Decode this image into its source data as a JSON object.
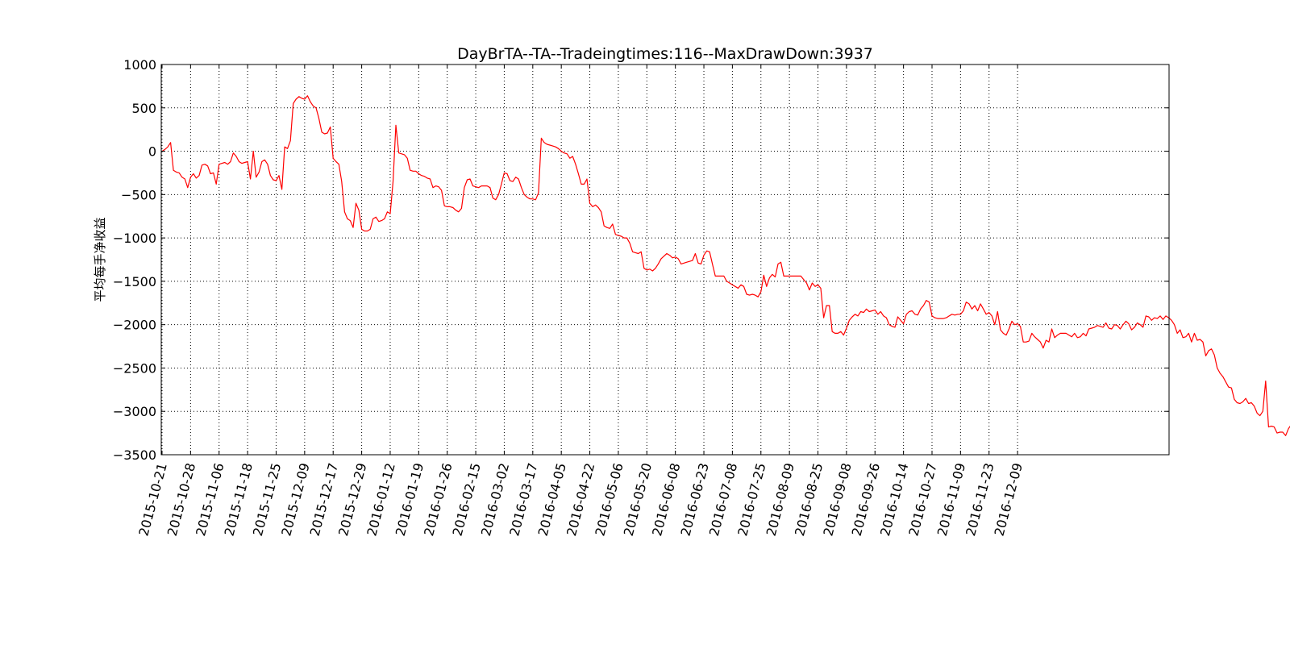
{
  "chart_data": {
    "type": "line",
    "title": "DayBrTA--TA--Tradeingtimes:116--MaxDrawDown:3937",
    "xlabel": "",
    "ylabel": "平均每手净收益",
    "ylim": [
      -3500,
      1000
    ],
    "yticks": [
      1000,
      500,
      0,
      -500,
      -1000,
      -1500,
      -2000,
      -2500,
      -3000,
      -3500
    ],
    "ytick_labels": [
      "1000",
      "500",
      "0",
      "−500",
      "−1000",
      "−1500",
      "−2000",
      "−2500",
      "−3000",
      "−3500"
    ],
    "x_tick_labels": [
      "2015-10-21",
      "2015-10-28",
      "2015-11-06",
      "2015-11-18",
      "2015-11-25",
      "2015-12-09",
      "2015-12-17",
      "2015-12-29",
      "2016-01-12",
      "2016-01-19",
      "2016-01-26",
      "2016-02-15",
      "2016-03-02",
      "2016-03-17",
      "2016-04-05",
      "2016-04-22",
      "2016-05-06",
      "2016-05-20",
      "2016-06-08",
      "2016-06-23",
      "2016-07-08",
      "2016-07-25",
      "2016-08-09",
      "2016-08-25",
      "2016-09-08",
      "2016-09-26",
      "2016-10-14",
      "2016-10-27",
      "2016-11-09",
      "2016-11-23",
      "2016-12-09"
    ],
    "x_tick_every": 10,
    "x_slots": 400,
    "grid": true,
    "grid_style": "dotted",
    "line_color": "#ff0000",
    "series": [
      {
        "values": [
          0,
          20,
          50,
          100,
          -220,
          -240,
          -250,
          -300,
          -320,
          -420,
          -300,
          -260,
          -310,
          -280,
          -160,
          -150,
          -170,
          -260,
          -250,
          -380,
          -150,
          -140,
          -130,
          -150,
          -120,
          -20,
          -60,
          -120,
          -140,
          -130,
          -120,
          -320,
          0,
          -300,
          -240,
          -120,
          -100,
          -150,
          -280,
          -330,
          -340,
          -280,
          -440,
          50,
          30,
          120,
          550,
          600,
          630,
          610,
          600,
          640,
          570,
          520,
          500,
          380,
          220,
          200,
          210,
          280,
          -80,
          -120,
          -150,
          -350,
          -700,
          -780,
          -800,
          -880,
          -600,
          -680,
          -900,
          -920,
          -920,
          -900,
          -780,
          -760,
          -810,
          -800,
          -780,
          -700,
          -720,
          -350,
          300,
          -20,
          -30,
          -40,
          -80,
          -220,
          -230,
          -230,
          -260,
          -280,
          -290,
          -310,
          -320,
          -420,
          -400,
          -410,
          -450,
          -630,
          -640,
          -640,
          -650,
          -680,
          -700,
          -660,
          -420,
          -330,
          -320,
          -400,
          -410,
          -420,
          -400,
          -400,
          -400,
          -420,
          -540,
          -560,
          -500,
          -380,
          -250,
          -260,
          -340,
          -350,
          -300,
          -320,
          -420,
          -500,
          -530,
          -550,
          -550,
          -560,
          -480,
          150,
          100,
          80,
          70,
          60,
          50,
          30,
          0,
          -20,
          -30,
          -80,
          -60,
          -150,
          -260,
          -380,
          -380,
          -320,
          -600,
          -640,
          -620,
          -650,
          -700,
          -860,
          -880,
          -890,
          -840,
          -960,
          -970,
          -980,
          -1000,
          -1000,
          -1060,
          -1160,
          -1170,
          -1180,
          -1160,
          -1350,
          -1370,
          -1360,
          -1380,
          -1350,
          -1300,
          -1240,
          -1210,
          -1180,
          -1200,
          -1230,
          -1220,
          -1240,
          -1300,
          -1290,
          -1280,
          -1270,
          -1260,
          -1180,
          -1290,
          -1300,
          -1200,
          -1150,
          -1160,
          -1300,
          -1440,
          -1440,
          -1440,
          -1440,
          -1500,
          -1520,
          -1540,
          -1560,
          -1580,
          -1540,
          -1560,
          -1650,
          -1660,
          -1650,
          -1660,
          -1680,
          -1620,
          -1430,
          -1560,
          -1460,
          -1420,
          -1450,
          -1300,
          -1280,
          -1440,
          -1440,
          -1440,
          -1440,
          -1440,
          -1440,
          -1440,
          -1480,
          -1520,
          -1600,
          -1520,
          -1560,
          -1540,
          -1580,
          -1920,
          -1780,
          -1780,
          -2080,
          -2100,
          -2100,
          -2080,
          -2120,
          -2040,
          -1950,
          -1910,
          -1880,
          -1900,
          -1850,
          -1860,
          -1820,
          -1850,
          -1840,
          -1830,
          -1880,
          -1850,
          -1900,
          -1920,
          -2000,
          -2020,
          -2030,
          -1910,
          -1950,
          -1990,
          -1880,
          -1850,
          -1840,
          -1880,
          -1890,
          -1820,
          -1780,
          -1720,
          -1740,
          -1900,
          -1920,
          -1930,
          -1930,
          -1930,
          -1920,
          -1900,
          -1880,
          -1890,
          -1880,
          -1880,
          -1840,
          -1740,
          -1760,
          -1820,
          -1780,
          -1840,
          -1760,
          -1820,
          -1880,
          -1860,
          -1900,
          -2000,
          -1850,
          -2060,
          -2100,
          -2120,
          -2050,
          -1960,
          -2000,
          -1990,
          -2020,
          -2200,
          -2200,
          -2190,
          -2100,
          -2140,
          -2170,
          -2200,
          -2270,
          -2180,
          -2200,
          -2050,
          -2150,
          -2120,
          -2100,
          -2100,
          -2100,
          -2120,
          -2140,
          -2100,
          -2150,
          -2140,
          -2100,
          -2130,
          -2050,
          -2040,
          -2030,
          -2010,
          -2020,
          -2030,
          -1980,
          -2040,
          -2050,
          -2000,
          -2010,
          -2050,
          -2000,
          -1960,
          -1990,
          -2060,
          -2030,
          -1980,
          -2000,
          -2030,
          -1900,
          -1910,
          -1950,
          -1920,
          -1930,
          -1900,
          -1940,
          -1900,
          -1920,
          -1950,
          -2000,
          -2100,
          -2060,
          -2150,
          -2140,
          -2100,
          -2200,
          -2100,
          -2180,
          -2170,
          -2200,
          -2360,
          -2300,
          -2280,
          -2350,
          -2500,
          -2560,
          -2600,
          -2660,
          -2720,
          -2730,
          -2860,
          -2900,
          -2910,
          -2890,
          -2850,
          -2910,
          -2900,
          -2940,
          -3020,
          -3050,
          -3000,
          -2650,
          -3180,
          -3170,
          -3180,
          -3250,
          -3240,
          -3240,
          -3280,
          -3200,
          -3150,
          -3140,
          -3150,
          -3120,
          -3050,
          -3150,
          -3200,
          -3160,
          -3200,
          -3230,
          -3220,
          -3080
        ]
      }
    ]
  }
}
